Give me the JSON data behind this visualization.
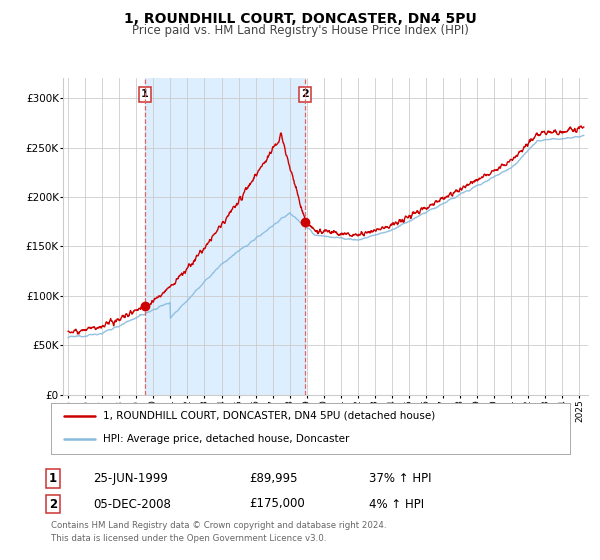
{
  "title": "1, ROUNDHILL COURT, DONCASTER, DN4 5PU",
  "subtitle": "Price paid vs. HM Land Registry's House Price Index (HPI)",
  "xlim": [
    1994.7,
    2025.5
  ],
  "ylim": [
    0,
    320000
  ],
  "yticks": [
    0,
    50000,
    100000,
    150000,
    200000,
    250000,
    300000
  ],
  "ytick_labels": [
    "£0",
    "£50K",
    "£100K",
    "£150K",
    "£200K",
    "£250K",
    "£300K"
  ],
  "xtick_years": [
    1995,
    1996,
    1997,
    1998,
    1999,
    2000,
    2001,
    2002,
    2003,
    2004,
    2005,
    2006,
    2007,
    2008,
    2009,
    2010,
    2011,
    2012,
    2013,
    2014,
    2015,
    2016,
    2017,
    2018,
    2019,
    2020,
    2021,
    2022,
    2023,
    2024,
    2025
  ],
  "red_line_color": "#cc0000",
  "blue_line_color": "#88bbdd",
  "marker_color": "#cc0000",
  "shade_color": "#ddeeff",
  "vline_color": "#dd6666",
  "grid_color": "#cccccc",
  "background_color": "#ffffff",
  "legend_label_red": "1, ROUNDHILL COURT, DONCASTER, DN4 5PU (detached house)",
  "legend_label_blue": "HPI: Average price, detached house, Doncaster",
  "sale1_x": 1999.49,
  "sale1_y": 89995,
  "sale1_label": "1",
  "sale1_date": "25-JUN-1999",
  "sale1_price": "£89,995",
  "sale1_hpi": "37% ↑ HPI",
  "sale2_x": 2008.92,
  "sale2_y": 175000,
  "sale2_label": "2",
  "sale2_date": "05-DEC-2008",
  "sale2_price": "£175,000",
  "sale2_hpi": "4% ↑ HPI",
  "footer1": "Contains HM Land Registry data © Crown copyright and database right 2024.",
  "footer2": "This data is licensed under the Open Government Licence v3.0."
}
